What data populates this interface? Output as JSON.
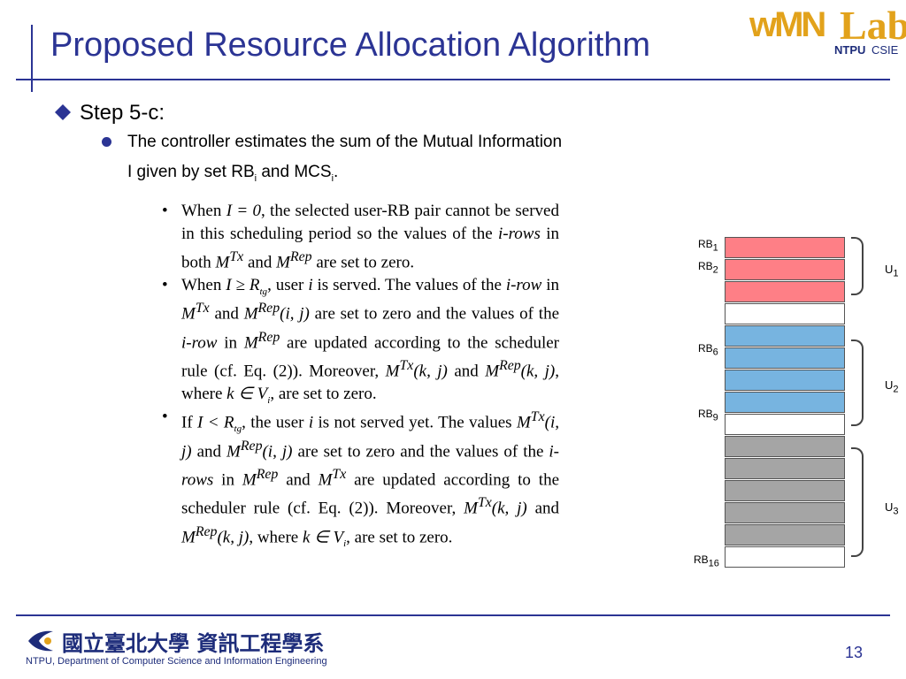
{
  "slide": {
    "title": "Proposed Resource Allocation Algorithm",
    "page_number": "13",
    "accent_color": "#2b3494"
  },
  "logo": {
    "wmn": "wMN",
    "lab": "Lab",
    "ntpu": "NTPU",
    "csie": "CSIE"
  },
  "step": {
    "label": "Step 5-c:",
    "line1": "The controller estimates the sum of the Mutual Information",
    "line2_prefix": "I given by set RB",
    "line2_sub1": "i",
    "line2_mid": " and MCS",
    "line2_sub2": "i",
    "line2_end": "."
  },
  "paper_items": [
    {
      "parts": [
        "When ",
        "I = 0",
        ", the selected user-RB pair cannot be served in this scheduling period so the values of the ",
        "i-rows",
        " in both ",
        "M",
        "Tx",
        " and ",
        "M",
        "Rep",
        " are set to zero."
      ]
    },
    {
      "parts": [
        "When ",
        "I ≥ R",
        "tg",
        ", user ",
        "i",
        " is served. The values of the ",
        "i-row",
        " in ",
        "M",
        "Tx",
        " and ",
        "M",
        "Rep",
        "(i, j)",
        " are set to zero and the values of the ",
        "i-row",
        " in ",
        "M",
        "Rep",
        " are updated according to the scheduler rule (cf. Eq. (2)). Moreover, ",
        "M",
        "Tx",
        "(k, j)",
        " and ",
        "M",
        "Rep",
        "(k, j)",
        ", where ",
        "k ∈ V",
        "i",
        ", are set to zero."
      ]
    },
    {
      "parts": [
        "If ",
        "I < R",
        "tg",
        ", the user ",
        "i",
        " is not served yet. The values ",
        "M",
        "Tx",
        "(i, j)",
        " and ",
        "M",
        "Rep",
        "(i, j)",
        " are set to zero and the values of the ",
        "i-rows",
        " in ",
        "M",
        "Rep",
        " and ",
        "M",
        "Tx",
        " are updated according to the scheduler rule (cf. Eq. (2)). Moreover, ",
        "M",
        "Tx",
        "(k, j)",
        " and ",
        "M",
        "Rep",
        "(k, j)",
        ", where ",
        "k ∈ V",
        "i",
        ", are set to zero."
      ]
    }
  ],
  "rb_diagram": {
    "blocks": [
      "red",
      "red",
      "red",
      "white",
      "blue",
      "blue",
      "blue",
      "blue",
      "white",
      "gray",
      "gray",
      "gray",
      "gray",
      "gray",
      "white"
    ],
    "colors": {
      "red": "#fe7f86",
      "blue": "#77b4e0",
      "gray": "#a5a5a5",
      "white": "#ffffff"
    },
    "rb_labels": [
      {
        "main": "RB",
        "sub": "1"
      },
      {
        "main": "RB",
        "sub": "2"
      },
      {
        "main": "RB",
        "sub": "6"
      },
      {
        "main": "RB",
        "sub": "9"
      },
      {
        "main": "RB",
        "sub": "16"
      }
    ],
    "user_labels": [
      {
        "main": "U",
        "sub": "1"
      },
      {
        "main": "U",
        "sub": "2"
      },
      {
        "main": "U",
        "sub": "3"
      }
    ]
  },
  "footer": {
    "chinese": "國立臺北大學 資訊工程學系",
    "english": "NTPU, Department of Computer Science and Information Engineering"
  }
}
